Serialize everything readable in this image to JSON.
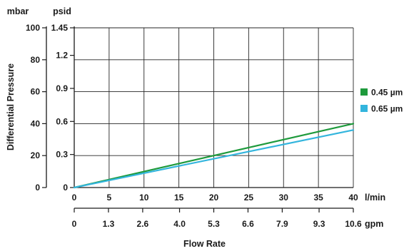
{
  "chart_data": {
    "type": "line",
    "xlabel": "Flow Rate",
    "ylabel": "Differential Pressure",
    "x_primary": {
      "unit": "l/min",
      "range": [
        0,
        40
      ],
      "ticks": [
        0,
        5,
        10,
        15,
        20,
        25,
        30,
        35,
        40
      ],
      "tick_labels": [
        "0",
        "5",
        "10",
        "15",
        "20",
        "25",
        "30",
        "35",
        "40"
      ]
    },
    "x_secondary": {
      "unit": "gpm",
      "range": [
        0,
        10.6
      ],
      "ticks": [
        0,
        1.3,
        2.6,
        4.0,
        5.3,
        6.6,
        7.9,
        9.3,
        10.6
      ],
      "tick_labels": [
        "0",
        "1.3",
        "2.6",
        "4.0",
        "5.3",
        "6.6",
        "7.9",
        "9.3",
        "10.6"
      ]
    },
    "y_primary": {
      "unit": "mbar",
      "range": [
        0,
        100
      ],
      "ticks": [
        0,
        20,
        40,
        60,
        80,
        100
      ],
      "tick_labels": [
        "0",
        "20",
        "40",
        "60",
        "80",
        "100"
      ]
    },
    "y_secondary": {
      "unit": "psid",
      "range": [
        0,
        1.45
      ],
      "ticks": [
        0,
        0.3,
        0.6,
        0.9,
        1.2,
        1.45
      ],
      "tick_labels": [
        "0",
        "0.3",
        "0.6",
        "0.9",
        "1.2",
        "1.45"
      ]
    },
    "grid": true,
    "legend_position": "right",
    "series": [
      {
        "name": "0.45 µm",
        "color": "#1e9a3c",
        "x": [
          0,
          40
        ],
        "y": [
          0,
          40
        ]
      },
      {
        "name": "0.65 µm",
        "color": "#33b5dd",
        "x": [
          0,
          40
        ],
        "y": [
          0,
          36
        ]
      }
    ]
  }
}
